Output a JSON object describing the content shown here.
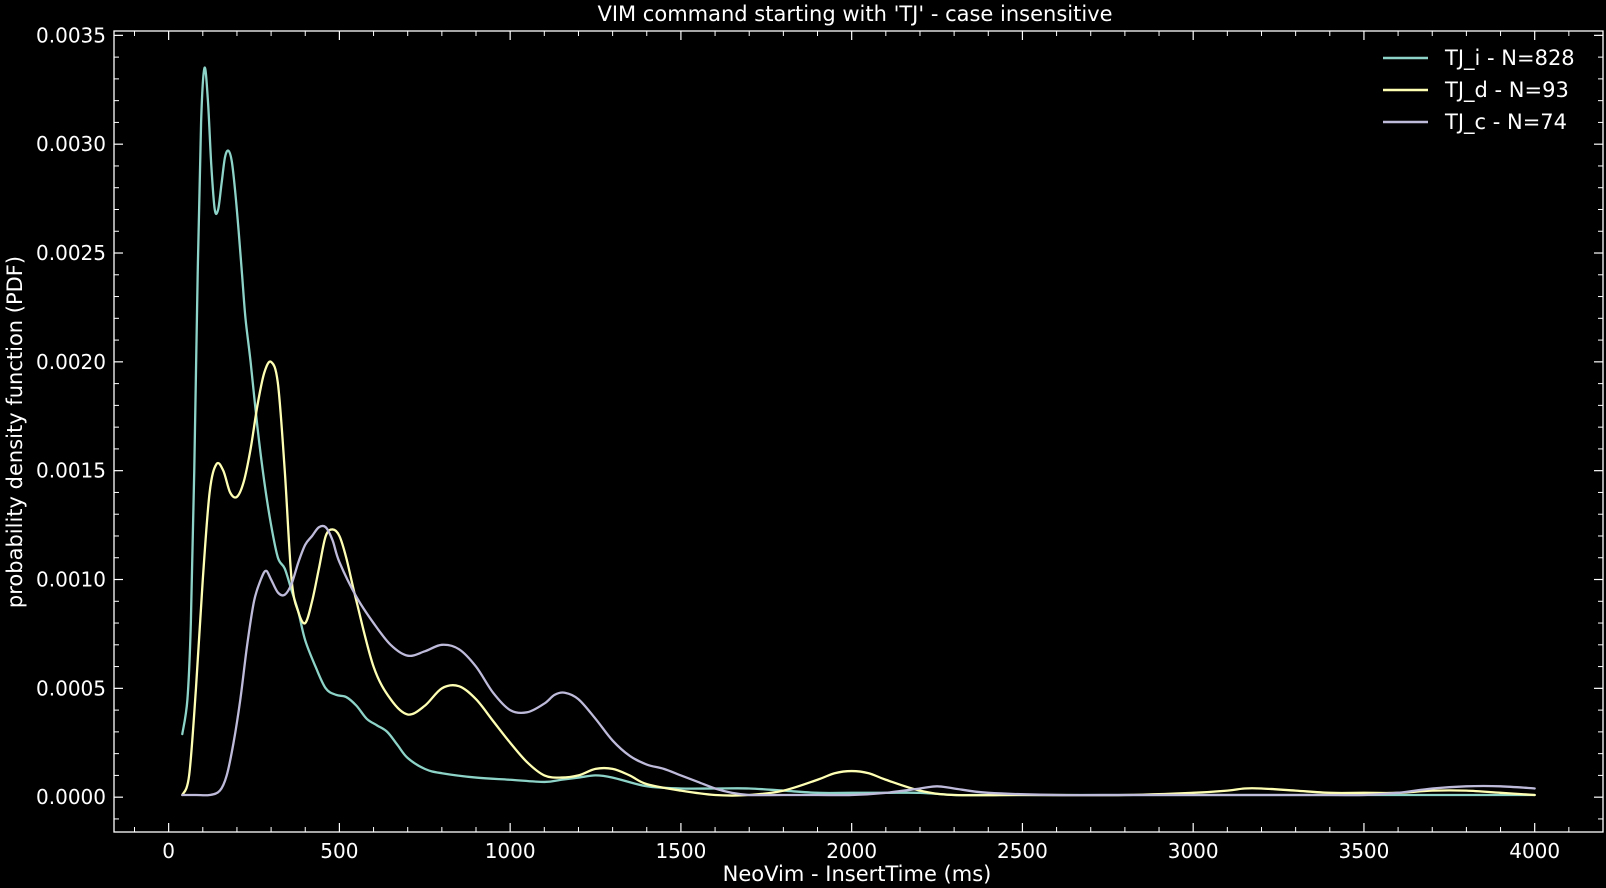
{
  "chart_data": {
    "type": "line",
    "title": "VIM command starting with 'TJ' - case insensitive",
    "xlabel": "NeoVim - InsertTime (ms)",
    "ylabel": "probability density function (PDF)",
    "xlim": [
      -160,
      4200
    ],
    "ylim": [
      -0.00016,
      0.00352
    ],
    "x_ticks": [
      0,
      500,
      1000,
      1500,
      2000,
      2500,
      3000,
      3500,
      4000
    ],
    "x_tick_labels": [
      "0",
      "500",
      "1000",
      "1500",
      "2000",
      "2500",
      "3000",
      "3500",
      "4000"
    ],
    "y_ticks": [
      0.0,
      0.0005,
      0.001,
      0.0015,
      0.002,
      0.0025,
      0.003,
      0.0035
    ],
    "y_tick_labels": [
      "0.0000",
      "0.0005",
      "0.0010",
      "0.0015",
      "0.0020",
      "0.0025",
      "0.0030",
      "0.0035"
    ],
    "grid": false,
    "legend_position": "top-right",
    "background": "#000000",
    "series": [
      {
        "name": "TJ_i - N=828",
        "color": "#8dd3c7",
        "x": [
          40,
          55,
          65,
          75,
          85,
          95,
          105,
          115,
          125,
          135,
          145,
          155,
          165,
          175,
          185,
          195,
          205,
          215,
          225,
          240,
          260,
          280,
          300,
          320,
          340,
          360,
          380,
          400,
          430,
          460,
          490,
          520,
          550,
          580,
          610,
          640,
          670,
          700,
          750,
          800,
          900,
          1000,
          1100,
          1150,
          1200,
          1250,
          1300,
          1400,
          1500,
          1600,
          1700,
          1800,
          1900,
          2000,
          2100,
          2200,
          2300,
          2400,
          2500,
          2700,
          3000,
          3200,
          3400,
          3600,
          3800,
          4000
        ],
        "y": [
          0.00029,
          0.00045,
          0.0008,
          0.0015,
          0.0024,
          0.0031,
          0.00335,
          0.0032,
          0.0029,
          0.0027,
          0.0027,
          0.00282,
          0.00294,
          0.00297,
          0.00292,
          0.00278,
          0.0026,
          0.0024,
          0.0022,
          0.002,
          0.0017,
          0.00145,
          0.00125,
          0.0011,
          0.00105,
          0.00095,
          0.00085,
          0.00072,
          0.0006,
          0.0005,
          0.00047,
          0.00046,
          0.00042,
          0.00036,
          0.00033,
          0.0003,
          0.00024,
          0.00018,
          0.00013,
          0.00011,
          9e-05,
          8e-05,
          7e-05,
          8e-05,
          9e-05,
          0.0001,
          9e-05,
          5e-05,
          4e-05,
          4e-05,
          4e-05,
          3e-05,
          2e-05,
          2e-05,
          2e-05,
          2e-05,
          1e-05,
          1e-05,
          1e-05,
          1e-05,
          1e-05,
          1e-05,
          1e-05,
          1e-05,
          1e-05,
          1e-05
        ]
      },
      {
        "name": "TJ_d - N=93",
        "color": "#ffffb3",
        "x": [
          40,
          60,
          80,
          100,
          120,
          140,
          160,
          180,
          200,
          220,
          240,
          260,
          280,
          300,
          320,
          340,
          360,
          380,
          400,
          420,
          440,
          460,
          480,
          500,
          520,
          550,
          600,
          650,
          700,
          750,
          800,
          850,
          900,
          950,
          1000,
          1050,
          1100,
          1150,
          1200,
          1250,
          1300,
          1350,
          1400,
          1500,
          1600,
          1700,
          1800,
          1900,
          1950,
          2000,
          2050,
          2100,
          2200,
          2300,
          2500,
          2800,
          3000,
          3100,
          3150,
          3200,
          3300,
          3400,
          3500,
          3600,
          3700,
          3800,
          3900,
          4000
        ],
        "y": [
          1e-05,
          0.0001,
          0.0005,
          0.001,
          0.0014,
          0.00153,
          0.0015,
          0.0014,
          0.00138,
          0.00145,
          0.0016,
          0.0018,
          0.00195,
          0.002,
          0.0019,
          0.0015,
          0.001,
          0.00085,
          0.0008,
          0.0009,
          0.00105,
          0.0012,
          0.00123,
          0.0012,
          0.0011,
          0.0009,
          0.0006,
          0.00045,
          0.00038,
          0.00042,
          0.0005,
          0.00051,
          0.00045,
          0.00035,
          0.00025,
          0.00016,
          0.0001,
          9e-05,
          0.0001,
          0.00013,
          0.00013,
          0.0001,
          6e-05,
          3e-05,
          1e-05,
          1e-05,
          3e-05,
          8e-05,
          0.00011,
          0.00012,
          0.00011,
          8e-05,
          3e-05,
          1e-05,
          1e-05,
          1e-05,
          2e-05,
          3e-05,
          4e-05,
          4e-05,
          3e-05,
          2e-05,
          2e-05,
          2e-05,
          3e-05,
          3e-05,
          2e-05,
          1e-05
        ]
      },
      {
        "name": "TJ_c - N=74",
        "color": "#bebada",
        "x": [
          40,
          80,
          120,
          150,
          170,
          190,
          210,
          230,
          250,
          270,
          285,
          300,
          320,
          340,
          360,
          380,
          400,
          420,
          440,
          460,
          480,
          500,
          550,
          600,
          650,
          700,
          750,
          800,
          850,
          900,
          950,
          1000,
          1050,
          1100,
          1130,
          1160,
          1200,
          1250,
          1300,
          1350,
          1400,
          1450,
          1500,
          1550,
          1600,
          1650,
          1700,
          1800,
          1900,
          2000,
          2100,
          2200,
          2250,
          2300,
          2400,
          2600,
          2800,
          3000,
          3200,
          3400,
          3500,
          3600,
          3700,
          3800,
          3900,
          4000
        ],
        "y": [
          1e-05,
          1e-05,
          1e-05,
          3e-05,
          0.0001,
          0.00025,
          0.00045,
          0.0007,
          0.0009,
          0.001,
          0.00104,
          0.001,
          0.00094,
          0.00093,
          0.00098,
          0.00108,
          0.00116,
          0.0012,
          0.00124,
          0.00124,
          0.00118,
          0.00108,
          0.00092,
          0.0008,
          0.0007,
          0.00065,
          0.00067,
          0.0007,
          0.00068,
          0.0006,
          0.00048,
          0.0004,
          0.00039,
          0.00043,
          0.00047,
          0.00048,
          0.00045,
          0.00036,
          0.00026,
          0.00019,
          0.00015,
          0.00013,
          0.0001,
          7e-05,
          4e-05,
          2e-05,
          1e-05,
          1e-05,
          1e-05,
          1e-05,
          2e-05,
          4e-05,
          5e-05,
          4e-05,
          2e-05,
          1e-05,
          1e-05,
          1e-05,
          1e-05,
          1e-05,
          1e-05,
          2e-05,
          4e-05,
          5e-05,
          5e-05,
          4e-05
        ]
      }
    ]
  }
}
